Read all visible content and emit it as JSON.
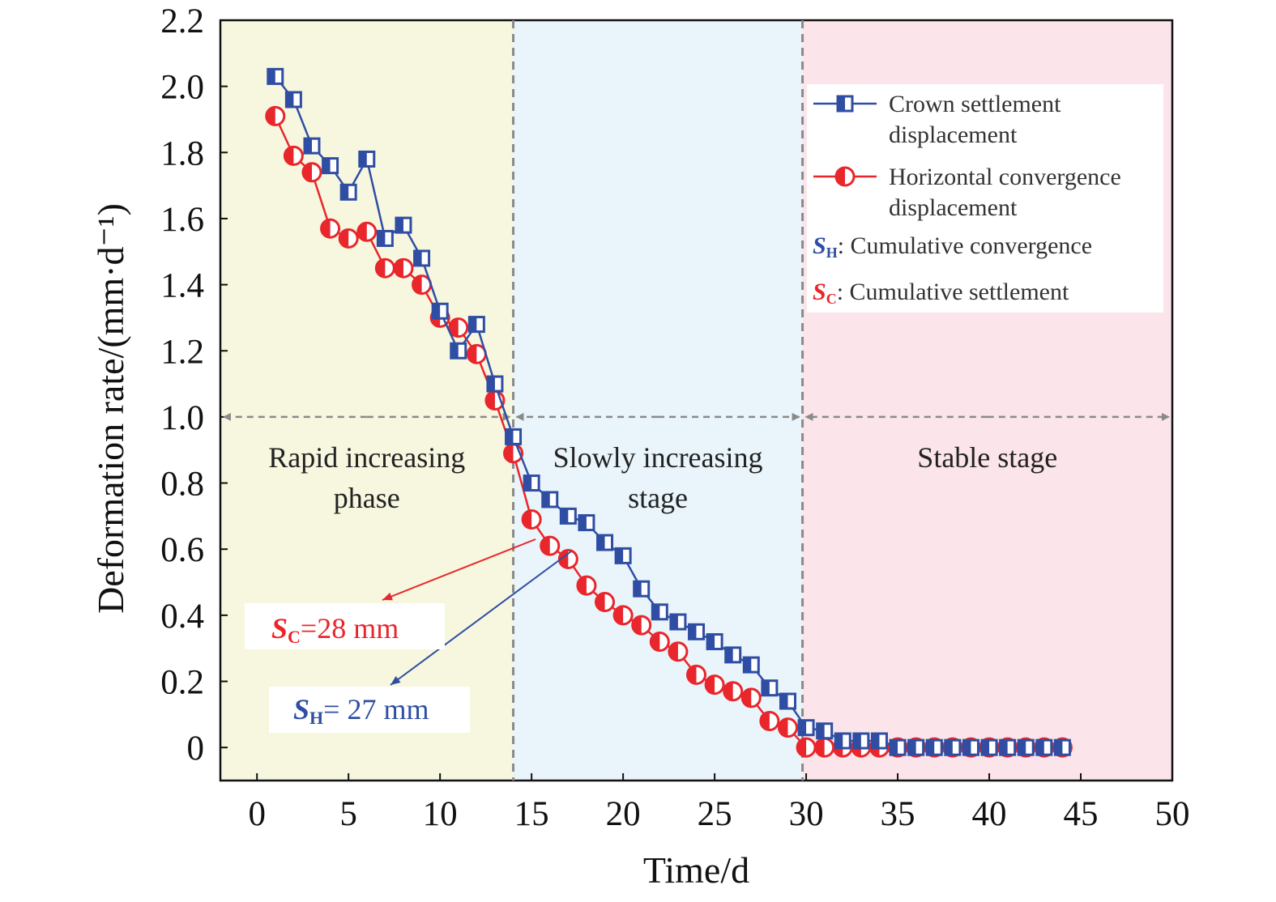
{
  "chart_data": {
    "type": "line",
    "xlabel": "Time/d",
    "ylabel": "Deformation rate/(mm·d⁻¹)",
    "xlim": [
      -2,
      50
    ],
    "ylim": [
      -0.1,
      2.2
    ],
    "xticks": [
      0,
      5,
      10,
      15,
      20,
      25,
      30,
      35,
      40,
      45,
      50
    ],
    "yticks": [
      0,
      0.2,
      0.4,
      0.6,
      0.8,
      1.0,
      1.2,
      1.4,
      1.6,
      1.8,
      2.0,
      2.2
    ],
    "ytick_labels": [
      "0",
      "0.2",
      "0.4",
      "0.6",
      "0.8",
      "1.0",
      "1.2",
      "1.4",
      "1.6",
      "1.8",
      "2.0",
      "2.2"
    ],
    "grid": false,
    "legend_position": "top-right",
    "stages": [
      {
        "label_lines": [
          "Rapid increasing",
          "phase"
        ],
        "x_start": -2,
        "x_end": 14,
        "color": "#f7f6df"
      },
      {
        "label_lines": [
          "Slowly increasing",
          "stage"
        ],
        "x_start": 14,
        "x_end": 29.8,
        "color": "#e9f4fb"
      },
      {
        "label_lines": [
          "Stable stage"
        ],
        "x_start": 29.8,
        "x_end": 50,
        "color": "#fbe4ea"
      }
    ],
    "stage_boundaries": [
      14,
      29.8
    ],
    "stage_arrow_y": 1.0,
    "series": [
      {
        "name": "Crown settlement displacement",
        "name_lines": [
          "Crown settlement",
          "displacement"
        ],
        "color": "#2f4ea3",
        "marker": "square-half",
        "x": [
          1,
          2,
          3,
          4,
          5,
          6,
          7,
          8,
          9,
          10,
          11,
          12,
          13,
          14,
          15,
          16,
          17,
          18,
          19,
          20,
          21,
          22,
          23,
          24,
          25,
          26,
          27,
          28,
          29,
          30,
          31,
          32,
          33,
          34,
          35,
          36,
          37,
          38,
          39,
          40,
          41,
          42,
          43,
          44
        ],
        "values": [
          2.03,
          1.96,
          1.82,
          1.76,
          1.68,
          1.78,
          1.54,
          1.58,
          1.48,
          1.32,
          1.2,
          1.28,
          1.1,
          0.94,
          0.8,
          0.75,
          0.7,
          0.68,
          0.62,
          0.58,
          0.48,
          0.41,
          0.38,
          0.35,
          0.32,
          0.28,
          0.25,
          0.18,
          0.14,
          0.06,
          0.05,
          0.02,
          0.02,
          0.02,
          0,
          0,
          0,
          0,
          0,
          0,
          0,
          0,
          0,
          0
        ]
      },
      {
        "name": "Horizontal convergence displacement",
        "name_lines": [
          "Horizontal convergence",
          "displacement"
        ],
        "color": "#e8262b",
        "marker": "circle-half",
        "x": [
          1,
          2,
          3,
          4,
          5,
          6,
          7,
          8,
          9,
          10,
          11,
          12,
          13,
          14,
          15,
          16,
          17,
          18,
          19,
          20,
          21,
          22,
          23,
          24,
          25,
          26,
          27,
          28,
          29,
          30,
          31,
          32,
          33,
          34,
          35,
          36,
          37,
          38,
          39,
          40,
          41,
          42,
          43,
          44
        ],
        "values": [
          1.91,
          1.79,
          1.74,
          1.57,
          1.54,
          1.56,
          1.45,
          1.45,
          1.4,
          1.3,
          1.27,
          1.19,
          1.05,
          0.89,
          0.69,
          0.61,
          0.57,
          0.49,
          0.44,
          0.4,
          0.37,
          0.32,
          0.29,
          0.22,
          0.19,
          0.17,
          0.15,
          0.08,
          0.06,
          0,
          0,
          0,
          0,
          0,
          0,
          0,
          0,
          0,
          0,
          0,
          0,
          0,
          0,
          0
        ]
      }
    ],
    "legend_notes": [
      {
        "symbol": "S",
        "sub": "H",
        "text": ": Cumulative convergence",
        "color": "#2f4ea3"
      },
      {
        "symbol": "S",
        "sub": "C",
        "text": ": Cumulative settlement",
        "color": "#e8262b"
      }
    ],
    "annotations": [
      {
        "symbol": "S",
        "sub": "C",
        "text": "=28 mm",
        "color": "#e8262b"
      },
      {
        "symbol": "S",
        "sub": "H",
        "text": "= 27 mm",
        "color": "#2f4ea3"
      }
    ]
  }
}
